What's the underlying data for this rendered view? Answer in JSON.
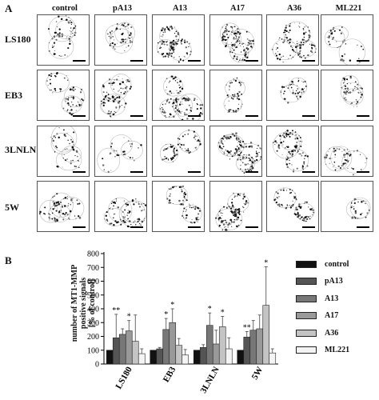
{
  "figure": {
    "panel_a_label": "A",
    "panel_b_label": "B",
    "columns": [
      "control",
      "pA13",
      "A13",
      "A17",
      "A36",
      "ML221"
    ],
    "rows": [
      "LS180",
      "EB3",
      "3LNLN",
      "5W"
    ]
  },
  "chart_data": {
    "type": "bar",
    "title": "",
    "xlabel": "",
    "ylabel": "number of MT1-MMP positive signals [% of control]",
    "ylabel_lines": [
      "number of MT1-MMP",
      "positive signals",
      "[% of control]"
    ],
    "ylim": [
      0,
      800
    ],
    "yticks": [
      0,
      100,
      200,
      300,
      400,
      500,
      600,
      700,
      800
    ],
    "grid": false,
    "legend_position": "right",
    "categories": [
      "LS180",
      "EB3",
      "3LNLN",
      "5W"
    ],
    "series": [
      {
        "name": "control",
        "color": "#111111",
        "values": [
          100,
          100,
          100,
          100
        ],
        "errors": [
          0,
          0,
          0,
          0
        ]
      },
      {
        "name": "pA13",
        "color": "#555555",
        "values": [
          190,
          110,
          120,
          195
        ],
        "errors": [
          170,
          10,
          20,
          40
        ]
      },
      {
        "name": "A13",
        "color": "#777777",
        "values": [
          215,
          250,
          280,
          245
        ],
        "errors": [
          40,
          80,
          90,
          70
        ]
      },
      {
        "name": "A17",
        "color": "#999999",
        "values": [
          240,
          300,
          145,
          255
        ],
        "errors": [
          75,
          100,
          100,
          100
        ]
      },
      {
        "name": "A36",
        "color": "#c4c4c4",
        "values": [
          165,
          135,
          270,
          425
        ],
        "errors": [
          190,
          50,
          75,
          280
        ]
      },
      {
        "name": "ML221",
        "color": "#f4f4f4",
        "values": [
          75,
          65,
          110,
          80
        ],
        "errors": [
          35,
          40,
          80,
          30
        ]
      }
    ],
    "annotations": [
      {
        "category": "LS180",
        "series": "pA13",
        "text": "**"
      },
      {
        "category": "LS180",
        "series": "A17",
        "text": "*"
      },
      {
        "category": "EB3",
        "series": "A13",
        "text": "*"
      },
      {
        "category": "EB3",
        "series": "A17",
        "text": "*"
      },
      {
        "category": "3LNLN",
        "series": "A13",
        "text": "*"
      },
      {
        "category": "3LNLN",
        "series": "A36",
        "text": "*"
      },
      {
        "category": "5W",
        "series": "pA13",
        "text": "**"
      },
      {
        "category": "5W",
        "series": "A36",
        "text": "*"
      }
    ]
  }
}
